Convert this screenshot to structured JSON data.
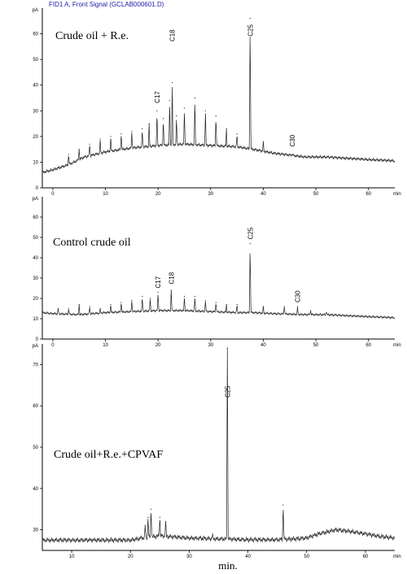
{
  "header_text": "FID1 A, Front Signal (GCLAB000601.D)",
  "x_caption": "min.",
  "chart_data": [
    {
      "type": "line",
      "title": "Crude oil + R.e.",
      "xlabel": "",
      "ylabel": "",
      "y_unit_label": "pA",
      "x_unit_label": "min",
      "xlim": [
        -2,
        65
      ],
      "ylim": [
        0,
        70
      ],
      "x_ticks": [
        0,
        10,
        20,
        30,
        40,
        50,
        60
      ],
      "y_ticks": [
        0,
        10,
        20,
        30,
        40,
        50,
        60
      ],
      "baseline": {
        "x": [
          -2,
          0,
          3,
          6,
          10,
          15,
          20,
          25,
          30,
          35,
          38,
          42,
          48,
          52,
          56,
          60,
          65
        ],
        "y": [
          6,
          7,
          9,
          12,
          14,
          15.5,
          16.5,
          17,
          16.5,
          16,
          15,
          13.5,
          12,
          12,
          11.5,
          11,
          10.5
        ]
      },
      "peaks": [
        {
          "x": 3,
          "y": 13
        },
        {
          "x": 5,
          "y": 15
        },
        {
          "x": 7,
          "y": 17
        },
        {
          "x": 9,
          "y": 19
        },
        {
          "x": 11,
          "y": 20
        },
        {
          "x": 13,
          "y": 21
        },
        {
          "x": 15,
          "y": 22
        },
        {
          "x": 17,
          "y": 23
        },
        {
          "x": 18.3,
          "y": 25
        },
        {
          "x": 19.8,
          "y": 30
        },
        {
          "x": 21,
          "y": 27
        },
        {
          "x": 22.2,
          "y": 34
        },
        {
          "x": 22.7,
          "y": 41
        },
        {
          "x": 23.5,
          "y": 28
        },
        {
          "x": 25,
          "y": 31
        },
        {
          "x": 27,
          "y": 35
        },
        {
          "x": 29,
          "y": 30
        },
        {
          "x": 31,
          "y": 28
        },
        {
          "x": 33,
          "y": 23
        },
        {
          "x": 35,
          "y": 21
        },
        {
          "x": 37.5,
          "y": 66
        },
        {
          "x": 40,
          "y": 18
        },
        {
          "x": 45.5,
          "y": 13
        }
      ],
      "peak_labels": [
        {
          "label": "C17",
          "x": 19.8,
          "y": 33
        },
        {
          "label": "C18",
          "x": 22.7,
          "y": 57
        },
        {
          "label": "C25",
          "x": 37.5,
          "y": 59
        },
        {
          "label": "C30",
          "x": 45.5,
          "y": 16
        }
      ]
    },
    {
      "type": "line",
      "title": "Control crude oil",
      "xlabel": "",
      "ylabel": "",
      "y_unit_label": "pA",
      "x_unit_label": "min",
      "xlim": [
        -2,
        65
      ],
      "ylim": [
        0,
        70
      ],
      "x_ticks": [
        0,
        10,
        20,
        30,
        40,
        50,
        60
      ],
      "y_ticks": [
        0,
        10,
        20,
        30,
        40,
        50,
        60
      ],
      "baseline": {
        "x": [
          -2,
          0,
          5,
          10,
          15,
          20,
          25,
          30,
          35,
          38,
          42,
          48,
          52,
          56,
          60,
          65
        ],
        "y": [
          13,
          12.5,
          12,
          13,
          13.5,
          14,
          14,
          13.5,
          13,
          13,
          12.5,
          12,
          12,
          11.5,
          11,
          10.5
        ]
      },
      "peaks": [
        {
          "x": 1,
          "y": 15
        },
        {
          "x": 3,
          "y": 15
        },
        {
          "x": 5,
          "y": 17
        },
        {
          "x": 7,
          "y": 16
        },
        {
          "x": 9,
          "y": 15
        },
        {
          "x": 11,
          "y": 17
        },
        {
          "x": 13,
          "y": 18
        },
        {
          "x": 15,
          "y": 19
        },
        {
          "x": 17,
          "y": 21
        },
        {
          "x": 18.5,
          "y": 20
        },
        {
          "x": 20,
          "y": 23
        },
        {
          "x": 22.5,
          "y": 24
        },
        {
          "x": 25,
          "y": 21
        },
        {
          "x": 27,
          "y": 21
        },
        {
          "x": 29,
          "y": 19
        },
        {
          "x": 31,
          "y": 18
        },
        {
          "x": 33,
          "y": 17
        },
        {
          "x": 35,
          "y": 17
        },
        {
          "x": 37.5,
          "y": 47
        },
        {
          "x": 40,
          "y": 16
        },
        {
          "x": 44,
          "y": 16
        },
        {
          "x": 46.5,
          "y": 16
        },
        {
          "x": 49,
          "y": 14
        },
        {
          "x": 52,
          "y": 13
        }
      ],
      "peak_labels": [
        {
          "label": "C17",
          "x": 20,
          "y": 25
        },
        {
          "label": "C18",
          "x": 22.5,
          "y": 27
        },
        {
          "label": "C25",
          "x": 37.5,
          "y": 49
        },
        {
          "label": "C30",
          "x": 46.5,
          "y": 18
        }
      ]
    },
    {
      "type": "line",
      "title": "Crude oil+R.e.+CPVAF",
      "xlabel": "",
      "ylabel": "",
      "y_unit_label": "pA",
      "x_unit_label": "min",
      "xlim": [
        5,
        65
      ],
      "ylim": [
        25,
        75
      ],
      "x_ticks": [
        10,
        20,
        30,
        40,
        50,
        60
      ],
      "y_ticks": [
        30,
        40,
        50,
        60,
        70
      ],
      "baseline": {
        "x": [
          5,
          10,
          15,
          20,
          22,
          25,
          30,
          35,
          40,
          45,
          48,
          50,
          52,
          55,
          58,
          60,
          62,
          65
        ],
        "y": [
          27.5,
          27.5,
          27.5,
          27.5,
          28,
          28.5,
          28,
          27.8,
          27.6,
          27.6,
          27.8,
          28,
          29,
          30,
          29.5,
          29,
          28.5,
          28
        ]
      },
      "peaks": [
        {
          "x": 22.5,
          "y": 31
        },
        {
          "x": 23,
          "y": 33
        },
        {
          "x": 23.5,
          "y": 35
        },
        {
          "x": 25,
          "y": 33
        },
        {
          "x": 26,
          "y": 32
        },
        {
          "x": 34,
          "y": 29
        },
        {
          "x": 36.5,
          "y": 74
        },
        {
          "x": 46,
          "y": 36
        }
      ],
      "peak_labels": [
        {
          "label": "C25",
          "x": 36.5,
          "y": 62
        }
      ]
    }
  ]
}
